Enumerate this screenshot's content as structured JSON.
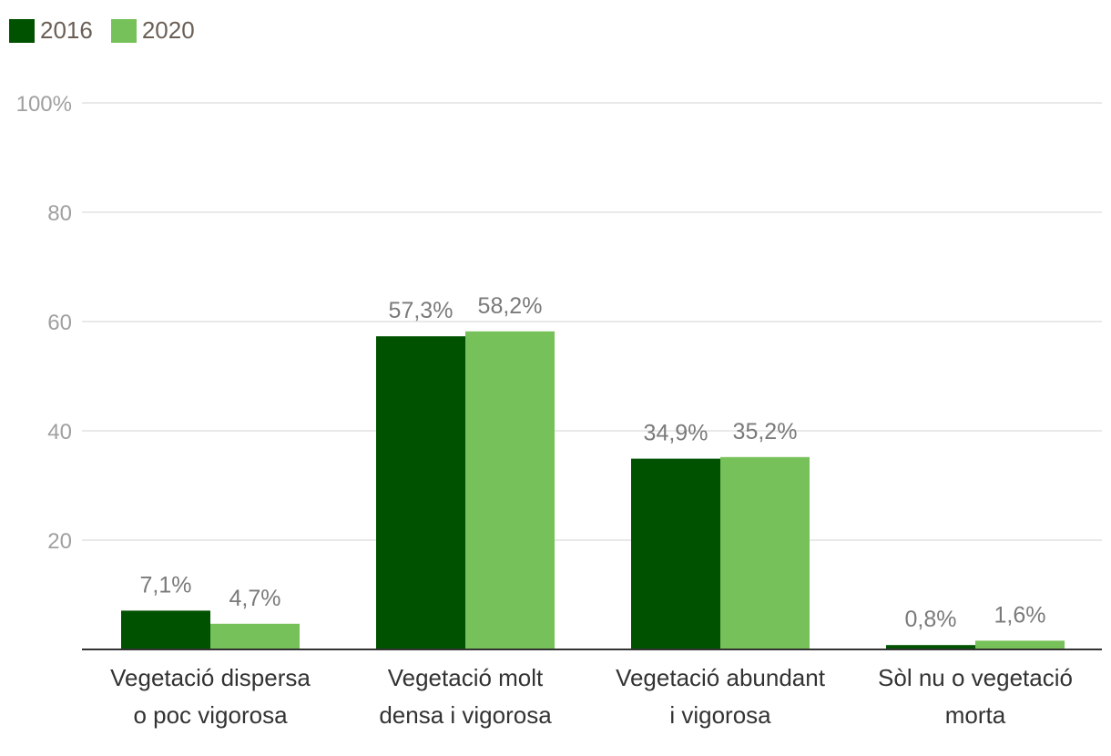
{
  "chart_data": {
    "type": "bar",
    "categories": [
      [
        "Vegetació dispersa",
        "o poc vigorosa"
      ],
      [
        "Vegetació molt",
        "densa i vigorosa"
      ],
      [
        "Vegetació abundant",
        "i vigorosa"
      ],
      [
        "Sòl nu o vegetació",
        "morta"
      ]
    ],
    "series": [
      {
        "name": "2016",
        "color": "#005200",
        "values": [
          7.1,
          57.3,
          34.9,
          0.8
        ],
        "labels": [
          "7,1%",
          "57,3%",
          "34,9%",
          "0,8%"
        ]
      },
      {
        "name": "2020",
        "color": "#77c15a",
        "values": [
          4.7,
          58.2,
          35.2,
          1.6
        ],
        "labels": [
          "4,7%",
          "58,2%",
          "35,2%",
          "1,6%"
        ]
      }
    ],
    "ylim": [
      0,
      100
    ],
    "yticks": [
      {
        "value": 20,
        "label": "20"
      },
      {
        "value": 40,
        "label": "40"
      },
      {
        "value": 60,
        "label": "60"
      },
      {
        "value": 80,
        "label": "80"
      },
      {
        "value": 100,
        "label": "100%"
      }
    ],
    "legend_position": "top-left",
    "grid": true
  }
}
